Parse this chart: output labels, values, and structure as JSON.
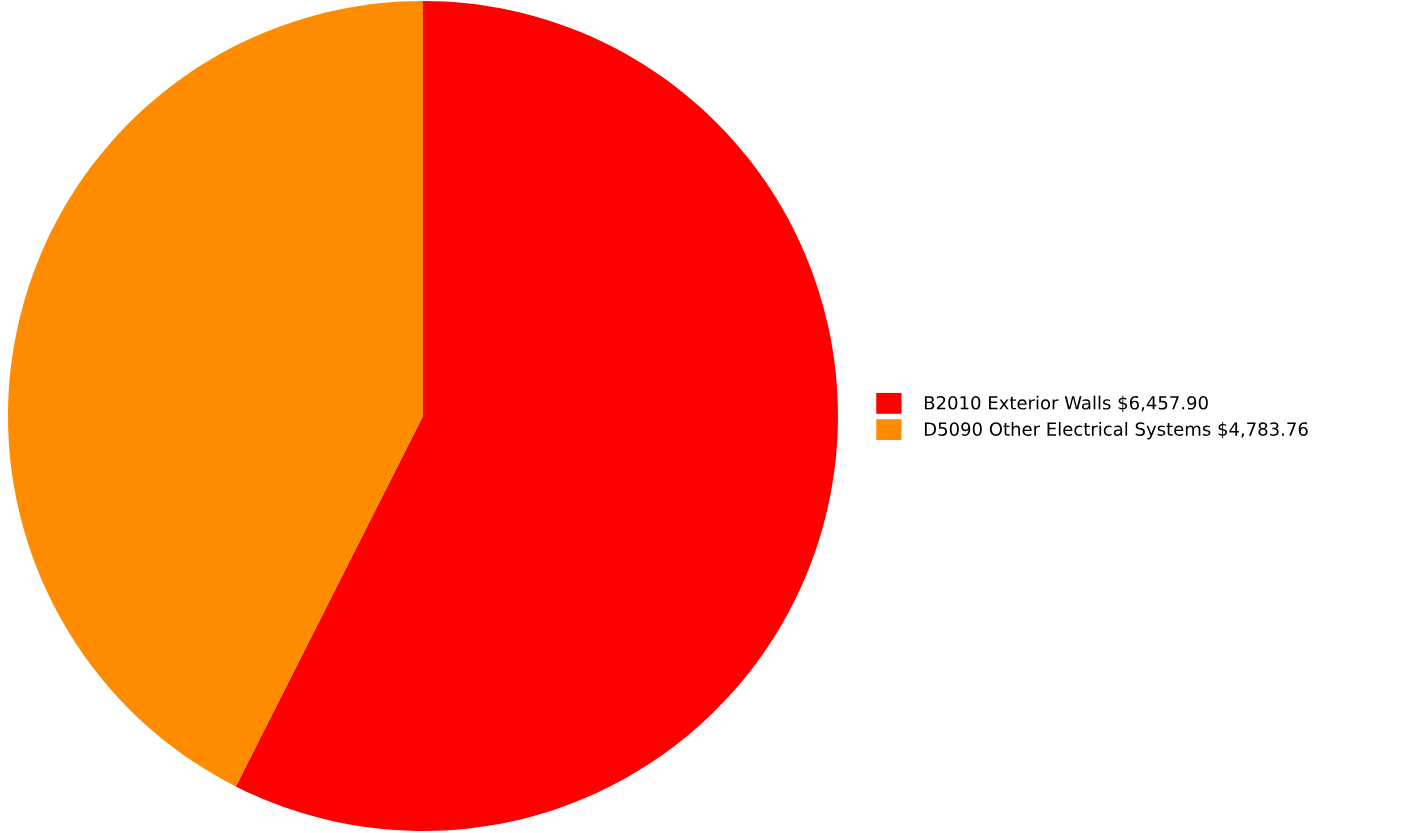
{
  "chart_data": {
    "type": "pie",
    "categories": [
      "B2010 Exterior Walls",
      "D5090 Other Electrical Systems"
    ],
    "values": [
      6457.9,
      4783.76
    ],
    "value_labels": [
      "$6,457.90",
      "$4,783.76"
    ],
    "colors": [
      "#ff0000",
      "#ff8c00"
    ],
    "legend": "right"
  }
}
